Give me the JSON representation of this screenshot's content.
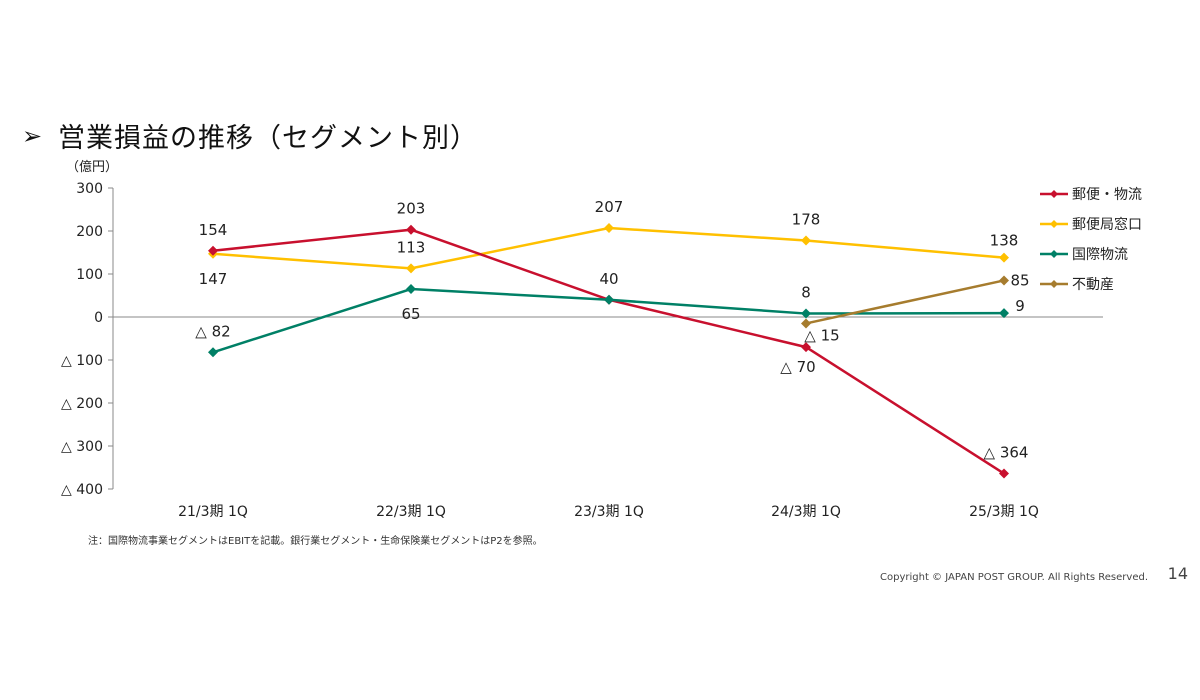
{
  "slide": {
    "bullet": "➢",
    "title": "営業損益の推移（セグメント別）",
    "unit": "（億円）",
    "note": "注：国際物流事業セグメントはEBITを記載。銀行業セグメント・生命保険業セグメントはP2を参照。",
    "copyright": "Copyright ©  JAPAN POST GROUP. All Rights Reserved.",
    "page_number": "14"
  },
  "chart_data": {
    "type": "line",
    "title": "営業損益の推移（セグメント別）",
    "ylabel": "（億円）",
    "categories": [
      "21/3期 1Q",
      "22/3期 1Q",
      "23/3期 1Q",
      "24/3期 1Q",
      "25/3期 1Q"
    ],
    "ylim": [
      -400,
      300
    ],
    "yticks": [
      300,
      200,
      100,
      0,
      -100,
      -200,
      -300,
      -400
    ],
    "ytick_labels": [
      "300",
      "200",
      "100",
      "0",
      "△ 100",
      "△ 200",
      "△ 300",
      "△ 400"
    ],
    "grid": false,
    "legend_position": "right",
    "series": [
      {
        "name": "郵便・物流",
        "color": "#C8102E",
        "values": [
          154,
          203,
          40,
          -70,
          -364
        ],
        "labels": [
          "154",
          "203",
          "",
          "△ 70",
          "△ 364"
        ]
      },
      {
        "name": "郵便局窓口",
        "color": "#FFC000",
        "values": [
          147,
          113,
          207,
          178,
          138
        ],
        "labels": [
          "147",
          "113",
          "207",
          "178",
          "138"
        ]
      },
      {
        "name": "国際物流",
        "color": "#008066",
        "values": [
          -82,
          65,
          40,
          8,
          9
        ],
        "labels": [
          "△ 82",
          "65",
          "40",
          "8",
          "9"
        ]
      },
      {
        "name": "不動産",
        "color": "#A67C2E",
        "values": [
          null,
          null,
          null,
          -15,
          85
        ],
        "labels": [
          "",
          "",
          "",
          "△ 15",
          "85"
        ]
      }
    ]
  }
}
